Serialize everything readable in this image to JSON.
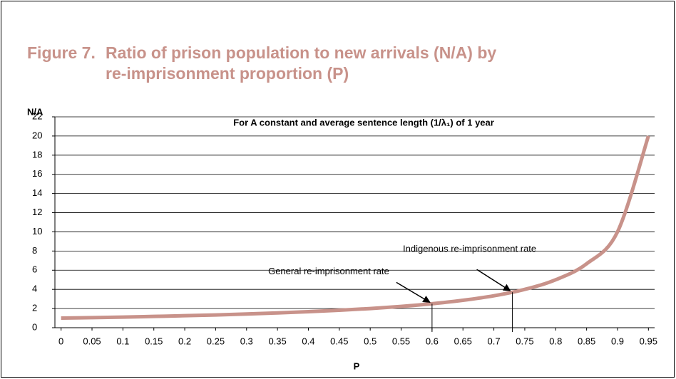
{
  "chart_data": {
    "type": "line",
    "figure_label": "Figure 7.",
    "title_lines": [
      "Ratio of prison population to new arrivals (N/A) by",
      "re-imprisonment proportion (P)"
    ],
    "subtitle": "For A constant and average sentence length (1/λ₁) of 1 year",
    "y_label": "N/A",
    "x_label": "P",
    "x": [
      0,
      0.05,
      0.1,
      0.15,
      0.2,
      0.25,
      0.3,
      0.35,
      0.4,
      0.45,
      0.5,
      0.55,
      0.6,
      0.65,
      0.7,
      0.75,
      0.8,
      0.85,
      0.9,
      0.95
    ],
    "series": [
      {
        "name": "N/A",
        "color": "#c8928a",
        "values": [
          1,
          1.05,
          1.11,
          1.18,
          1.25,
          1.33,
          1.43,
          1.54,
          1.67,
          1.82,
          2,
          2.22,
          2.5,
          2.86,
          3.33,
          4,
          5,
          6.67,
          10,
          20
        ]
      }
    ],
    "xlim": [
      -0.01,
      0.96
    ],
    "xticks": [
      0,
      0.05,
      0.1,
      0.15,
      0.2,
      0.25,
      0.3,
      0.35,
      0.4,
      0.45,
      0.5,
      0.55,
      0.6,
      0.65,
      0.7,
      0.75,
      0.8,
      0.85,
      0.9,
      0.95
    ],
    "ylim": [
      0,
      22
    ],
    "yticks": [
      0,
      2,
      4,
      6,
      8,
      10,
      12,
      14,
      16,
      18,
      20,
      22
    ],
    "grid": true,
    "annotations": [
      {
        "text": "General re-imprisonment rate",
        "x": 0.6,
        "y": 2.5
      },
      {
        "text": "Indigenous re-imprisonment rate",
        "x": 0.73,
        "y": 3.7
      }
    ]
  }
}
